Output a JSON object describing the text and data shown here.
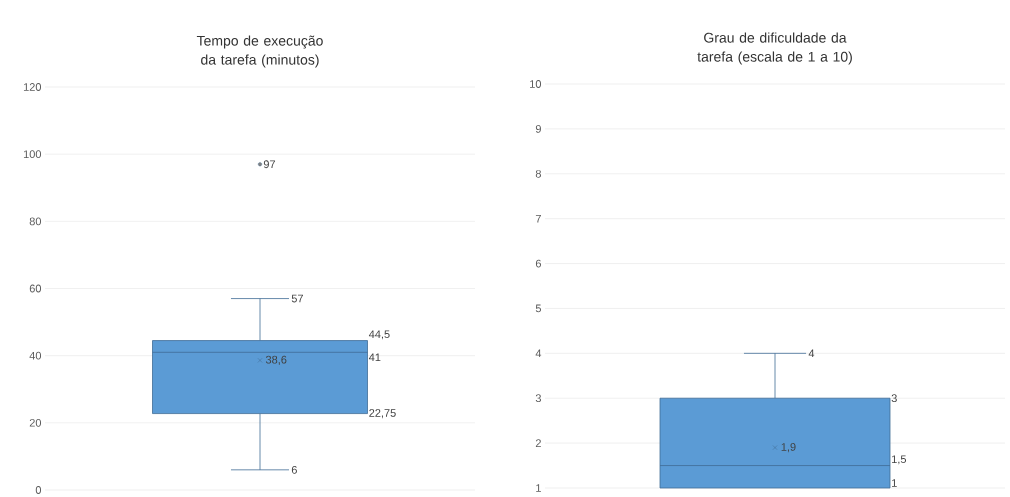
{
  "chart_data": [
    {
      "type": "box",
      "title": "Tempo de execução da tarefa (minutos)",
      "categories": [
        null
      ],
      "color": "#5b9bd5",
      "boxes": [
        {
          "low": 6,
          "q1": 22.75,
          "median": 41,
          "q3": 44.5,
          "high": 57,
          "mean": 38.6,
          "outliers": [
            97
          ]
        }
      ],
      "ylim": [
        0,
        120
      ],
      "yticks": [
        0,
        20,
        40,
        60,
        80,
        100,
        120
      ],
      "grid": "y",
      "annotations": [
        "57",
        "6",
        "44,5",
        "41",
        "22,75",
        "38,6",
        "97"
      ]
    },
    {
      "type": "box",
      "title": "Grau de dificuldade da tarefa (escala de 1 a 10)",
      "categories": [
        null
      ],
      "color": "#5b9bd5",
      "boxes": [
        {
          "low": 1,
          "q1": 1,
          "median": 1.5,
          "q3": 3,
          "high": 4,
          "mean": 1.9
        }
      ],
      "ylim": [
        1,
        10
      ],
      "yticks": [
        1,
        2,
        3,
        4,
        5,
        6,
        7,
        8,
        9,
        10
      ],
      "grid": "y",
      "annotations": [
        "4",
        "3",
        "1,5",
        "1",
        "1,9"
      ]
    }
  ]
}
